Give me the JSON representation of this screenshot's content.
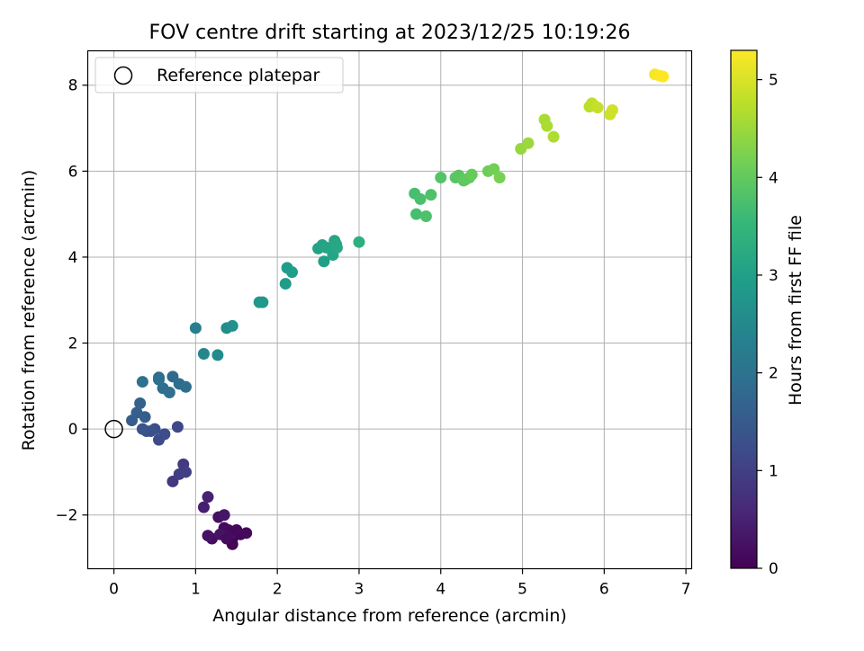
{
  "chart_data": {
    "type": "scatter",
    "title": "FOV centre drift starting at 2023/12/25 10:19:26",
    "xlabel": "Angular distance from reference (arcmin)",
    "ylabel": "Rotation from reference (arcmin)",
    "xlim": [
      -0.32,
      7.07
    ],
    "ylim": [
      -3.25,
      8.8
    ],
    "xticks": [
      0,
      1,
      2,
      3,
      4,
      5,
      6,
      7
    ],
    "yticks": [
      -2,
      0,
      2,
      4,
      6,
      8
    ],
    "ytick_labels": [
      "−2",
      "0",
      "2",
      "4",
      "6",
      "8"
    ],
    "grid": true,
    "legend": {
      "placement": "top-left",
      "label": "Reference platepar"
    },
    "reference_point": {
      "x": 0,
      "y": 0
    },
    "colorbar": {
      "label": "Hours from first FF file",
      "colormap": "viridis",
      "range": [
        0,
        5.3
      ],
      "ticks": [
        0,
        1,
        2,
        3,
        4,
        5
      ]
    },
    "series": [
      {
        "x": [
          1.45,
          1.55,
          1.4,
          1.62,
          1.35,
          1.2,
          1.28,
          1.15,
          1.42,
          1.3,
          1.35,
          1.5,
          1.45,
          1.38,
          1.1,
          1.15,
          0.72,
          0.85,
          0.8,
          0.88,
          0.78,
          0.55,
          0.62,
          0.5,
          0.4,
          0.45,
          0.35,
          0.22,
          0.28,
          0.38,
          0.32,
          0.55,
          0.6,
          0.68,
          0.72,
          0.8,
          0.88,
          0.35,
          0.55,
          1.0,
          1.1,
          1.27,
          1.38,
          1.45,
          1.78,
          1.82,
          2.1,
          2.12,
          2.18,
          2.5,
          2.55,
          2.6,
          2.57,
          2.7,
          2.72,
          2.68,
          2.73,
          3.0,
          3.68,
          3.7,
          3.75,
          3.82,
          3.88,
          4.0,
          4.18,
          4.22,
          4.28,
          4.3,
          4.35,
          4.38,
          4.58,
          4.65,
          4.72,
          4.98,
          5.07,
          5.27,
          5.3,
          5.38,
          5.82,
          5.85,
          5.88,
          5.92,
          6.07,
          6.1,
          6.62,
          6.68,
          6.72
        ],
        "y": [
          -2.55,
          -2.45,
          -2.35,
          -2.42,
          -2.3,
          -2.55,
          -2.05,
          -2.48,
          -2.5,
          -2.45,
          -2.0,
          -2.35,
          -2.68,
          -2.55,
          -1.82,
          -1.58,
          -1.22,
          -0.82,
          -1.05,
          -1.0,
          0.05,
          -0.25,
          -0.12,
          0.0,
          -0.05,
          -0.05,
          0.0,
          0.2,
          0.38,
          0.28,
          0.6,
          1.2,
          0.95,
          0.85,
          1.22,
          1.05,
          0.98,
          1.1,
          1.15,
          2.35,
          1.75,
          1.72,
          2.35,
          2.4,
          2.95,
          2.95,
          3.38,
          3.75,
          3.65,
          4.2,
          4.28,
          4.22,
          3.9,
          4.38,
          4.3,
          4.05,
          4.22,
          4.35,
          5.48,
          5.0,
          5.35,
          4.95,
          5.45,
          5.85,
          5.85,
          5.9,
          5.78,
          5.8,
          5.85,
          5.92,
          6.0,
          6.05,
          5.85,
          6.52,
          6.65,
          7.2,
          7.05,
          6.8,
          7.5,
          7.58,
          7.52,
          7.48,
          7.32,
          7.42,
          8.25,
          8.22,
          8.2
        ],
        "hours": [
          0.05,
          0.08,
          0.1,
          0.12,
          0.15,
          0.18,
          0.22,
          0.25,
          0.2,
          0.28,
          0.3,
          0.1,
          0.05,
          0.15,
          0.45,
          0.5,
          0.85,
          0.9,
          0.95,
          0.98,
          1.15,
          1.2,
          1.25,
          1.3,
          1.35,
          1.32,
          1.4,
          1.55,
          1.6,
          1.58,
          1.65,
          1.85,
          1.9,
          1.95,
          1.8,
          1.88,
          1.92,
          2.0,
          1.98,
          2.25,
          2.45,
          2.55,
          2.6,
          2.65,
          2.8,
          2.82,
          2.9,
          2.92,
          2.95,
          3.05,
          3.08,
          3.1,
          3.0,
          3.12,
          3.15,
          3.1,
          3.15,
          3.35,
          3.7,
          3.72,
          3.75,
          3.78,
          3.8,
          3.85,
          3.9,
          3.92,
          3.95,
          3.98,
          4.0,
          4.05,
          4.1,
          4.15,
          4.2,
          4.45,
          4.5,
          4.6,
          4.62,
          4.65,
          4.75,
          4.78,
          4.8,
          4.85,
          4.9,
          4.92,
          5.25,
          5.28,
          5.3
        ]
      }
    ]
  }
}
